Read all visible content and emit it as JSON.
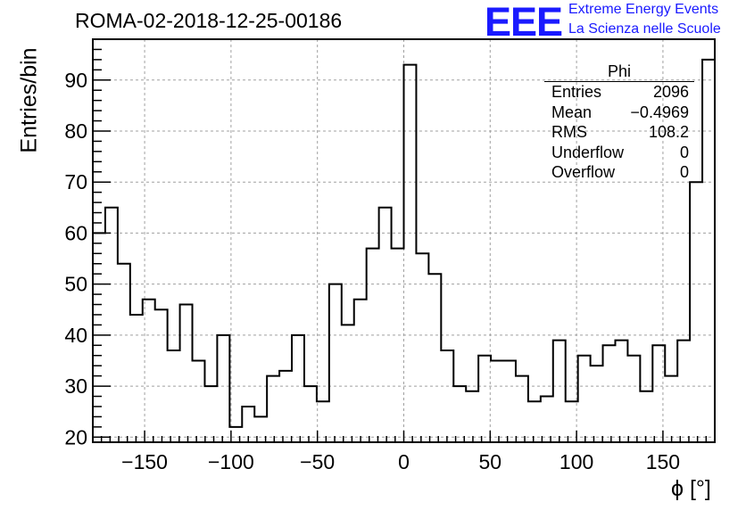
{
  "title": "ROMA-02-2018-12-25-00186",
  "logo": {
    "mark": "EEE",
    "line1": "Extreme Energy Events",
    "line2": "La Scienza nelle Scuole"
  },
  "colors": {
    "logo": "#1a1aff",
    "line": "#000000",
    "grid": "#a0a0a0"
  },
  "stats": {
    "name": "Phi",
    "rows": [
      {
        "label": "Entries",
        "value": "2096"
      },
      {
        "label": "Mean",
        "value": "−0.4969"
      },
      {
        "label": "RMS",
        "value": "108.2"
      },
      {
        "label": "Underflow",
        "value": "0"
      },
      {
        "label": "Overflow",
        "value": "0"
      }
    ]
  },
  "chart_data": {
    "type": "bar",
    "style": "step-histogram",
    "xlabel": "ϕ [°]",
    "ylabel": "Entries/bin",
    "xlim": [
      -180,
      180
    ],
    "ylim": [
      19,
      98
    ],
    "grid": true,
    "x_ticks": [
      -150,
      -100,
      -50,
      0,
      50,
      100,
      150
    ],
    "x_tick_labels": [
      "−150",
      "−100",
      "−50",
      "0",
      "50",
      "100",
      "150"
    ],
    "y_ticks": [
      20,
      30,
      40,
      50,
      60,
      70,
      80,
      90
    ],
    "bin_edges_start": -180,
    "bin_width": 7.2,
    "values": [
      60,
      65,
      54,
      44,
      47,
      45,
      37,
      46,
      35,
      30,
      40,
      22,
      26,
      24,
      32,
      33,
      40,
      30,
      27,
      50,
      42,
      47,
      57,
      65,
      57,
      93,
      56,
      52,
      37,
      30,
      29,
      36,
      35,
      35,
      32,
      27,
      28,
      39,
      27,
      36,
      34,
      38,
      39,
      36,
      29,
      38,
      32,
      39,
      70,
      94
    ]
  }
}
